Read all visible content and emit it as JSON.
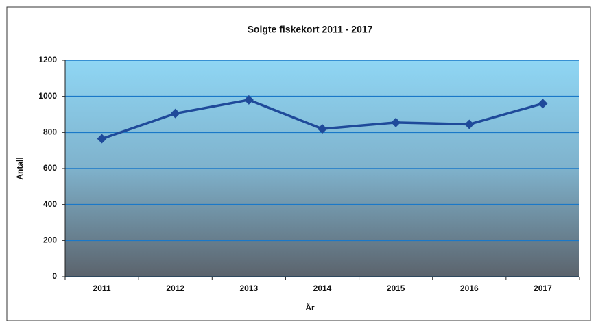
{
  "chart_data": {
    "type": "line",
    "title": "Solgte fiskekort 2011 - 2017",
    "x_label": "År",
    "y_label": "Antall",
    "categories": [
      "2011",
      "2012",
      "2013",
      "2014",
      "2015",
      "2016",
      "2017"
    ],
    "series": [
      {
        "name": "Antall",
        "color": "#1f4a9a",
        "values": [
          765,
          905,
          980,
          820,
          855,
          845,
          960
        ]
      }
    ],
    "ylim": [
      0,
      1200
    ],
    "yticks": [
      0,
      200,
      400,
      600,
      800,
      1000,
      1200
    ],
    "grid": true
  }
}
